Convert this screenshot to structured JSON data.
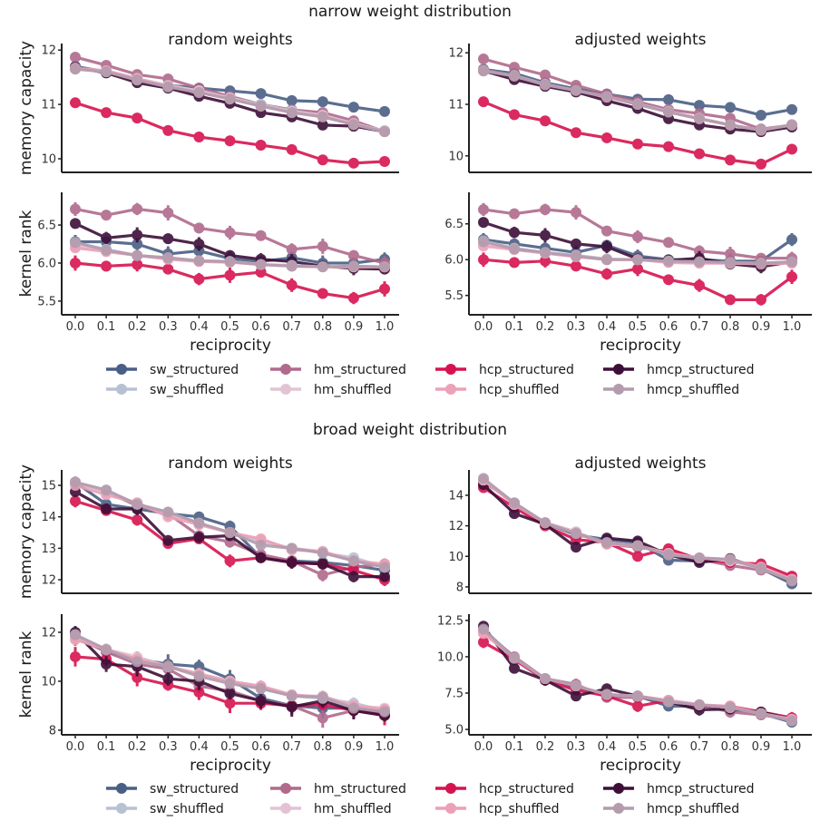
{
  "sections": [
    {
      "title": "narrow weight distribution"
    },
    {
      "title": "broad weight distribution"
    }
  ],
  "legend": [
    {
      "key": "sw_structured",
      "label": "sw_structured",
      "color": "#4a5f85"
    },
    {
      "key": "hm_structured",
      "label": "hm_structured",
      "color": "#b06a8c"
    },
    {
      "key": "hcp_structured",
      "label": "hcp_structured",
      "color": "#d6134f"
    },
    {
      "key": "hmcp_structured",
      "label": "hmcp_structured",
      "color": "#3d0f38"
    },
    {
      "key": "sw_shuffled",
      "label": "sw_shuffled",
      "color": "#b8c1d3"
    },
    {
      "key": "hm_shuffled",
      "label": "hm_shuffled",
      "color": "#e3c3d3"
    },
    {
      "key": "hcp_shuffled",
      "label": "hcp_shuffled",
      "color": "#eba1b7"
    },
    {
      "key": "hmcp_shuffled",
      "label": "hmcp_shuffled",
      "color": "#b29cad"
    }
  ],
  "chart_data": {
    "type": "line",
    "xlabel": "reciprocity",
    "x": [
      0.0,
      0.1,
      0.2,
      0.3,
      0.4,
      0.5,
      0.6,
      0.7,
      0.8,
      0.9,
      1.0
    ],
    "xtick_labels": [
      "0.0",
      "0.1",
      "0.2",
      "0.3",
      "0.4",
      "0.5",
      "0.6",
      "0.7",
      "0.8",
      "0.9",
      "1.0"
    ],
    "panels": [
      {
        "section": "narrow weight distribution",
        "title": "random weights",
        "ylabel": "memory capacity",
        "ylim": [
          9.75,
          12.12
        ],
        "yticks": [
          10,
          11,
          12
        ],
        "ytick_labels": [
          "10",
          "11",
          "12"
        ],
        "error": 0,
        "series": {
          "sw_structured": [
            11.7,
            11.6,
            11.45,
            11.35,
            11.3,
            11.25,
            11.2,
            11.07,
            11.05,
            10.95,
            10.87
          ],
          "hm_structured": [
            11.87,
            11.72,
            11.55,
            11.47,
            11.3,
            11.15,
            11.0,
            10.9,
            10.85,
            10.7,
            10.5
          ],
          "hcp_structured": [
            11.03,
            10.85,
            10.75,
            10.52,
            10.4,
            10.33,
            10.25,
            10.17,
            9.98,
            9.92,
            9.95
          ],
          "hmcp_structured": [
            11.68,
            11.58,
            11.4,
            11.3,
            11.15,
            11.02,
            10.85,
            10.77,
            10.62,
            10.6,
            10.5
          ],
          "sw_shuffled": [
            11.65,
            11.6,
            11.45,
            11.33,
            11.25,
            11.12,
            11.0,
            10.88,
            10.8,
            10.63,
            10.52
          ],
          "hm_shuffled": [
            11.65,
            11.62,
            11.48,
            11.35,
            11.25,
            11.12,
            10.97,
            10.87,
            10.8,
            10.65,
            10.5
          ],
          "hcp_shuffled": [
            11.67,
            11.62,
            11.47,
            11.33,
            11.22,
            11.1,
            10.97,
            10.85,
            10.78,
            10.63,
            10.5
          ],
          "hmcp_shuffled": [
            11.65,
            11.6,
            11.45,
            11.32,
            11.22,
            11.1,
            10.97,
            10.85,
            10.77,
            10.63,
            10.5
          ]
        }
      },
      {
        "section": "narrow weight distribution",
        "title": "random weights",
        "ylabel": "kernel rank",
        "ylim": [
          5.32,
          6.93
        ],
        "yticks": [
          5.5,
          6.0,
          6.5
        ],
        "ytick_labels": [
          "5.5",
          "6.0",
          "6.5"
        ],
        "error": 0.1,
        "series": {
          "sw_structured": [
            6.28,
            6.28,
            6.25,
            6.12,
            6.16,
            6.06,
            6.02,
            6.07,
            6.0,
            6.0,
            6.05
          ],
          "hm_structured": [
            6.71,
            6.63,
            6.71,
            6.66,
            6.46,
            6.4,
            6.36,
            6.18,
            6.22,
            6.1,
            6.0
          ],
          "hcp_structured": [
            6.0,
            5.96,
            5.98,
            5.92,
            5.79,
            5.84,
            5.88,
            5.71,
            5.6,
            5.54,
            5.66
          ],
          "hmcp_structured": [
            6.52,
            6.33,
            6.37,
            6.32,
            6.25,
            6.1,
            6.05,
            6.02,
            5.96,
            5.93,
            5.92
          ],
          "sw_shuffled": [
            6.27,
            6.18,
            6.1,
            6.07,
            6.03,
            6.02,
            5.98,
            5.97,
            5.95,
            5.96,
            5.95
          ],
          "hm_shuffled": [
            6.22,
            6.17,
            6.1,
            6.06,
            6.03,
            6.02,
            5.98,
            5.96,
            5.95,
            5.95,
            5.95
          ],
          "hcp_shuffled": [
            6.2,
            6.15,
            6.1,
            6.05,
            6.02,
            6.01,
            5.98,
            5.96,
            5.95,
            5.95,
            5.95
          ],
          "hmcp_shuffled": [
            6.27,
            6.17,
            6.1,
            6.07,
            6.03,
            6.02,
            5.98,
            5.96,
            5.95,
            5.96,
            5.95
          ]
        }
      },
      {
        "section": "narrow weight distribution",
        "title": "adjusted weights",
        "ylabel": "memory capacity",
        "ylim": [
          9.68,
          12.18
        ],
        "yticks": [
          10,
          11,
          12
        ],
        "ytick_labels": [
          "10",
          "11",
          "12"
        ],
        "error": 0,
        "series": {
          "sw_structured": [
            11.68,
            11.6,
            11.42,
            11.3,
            11.2,
            11.1,
            11.09,
            10.98,
            10.94,
            10.79,
            10.9
          ],
          "hm_structured": [
            11.88,
            11.72,
            11.57,
            11.37,
            11.2,
            11.05,
            10.9,
            10.82,
            10.73,
            10.52,
            10.6
          ],
          "hcp_structured": [
            11.05,
            10.8,
            10.68,
            10.45,
            10.35,
            10.23,
            10.18,
            10.04,
            9.92,
            9.84,
            10.13
          ],
          "hmcp_structured": [
            11.65,
            11.48,
            11.35,
            11.24,
            11.07,
            10.92,
            10.72,
            10.6,
            10.52,
            10.47,
            10.56
          ],
          "sw_shuffled": [
            11.65,
            11.56,
            11.39,
            11.27,
            11.15,
            11.01,
            10.86,
            10.73,
            10.6,
            10.5,
            10.6
          ],
          "hm_shuffled": [
            11.65,
            11.55,
            11.38,
            11.27,
            11.15,
            11.0,
            10.86,
            10.73,
            10.6,
            10.5,
            10.61
          ],
          "hcp_shuffled": [
            11.66,
            11.55,
            11.38,
            11.27,
            11.14,
            11.0,
            10.85,
            10.72,
            10.6,
            10.5,
            10.6
          ],
          "hmcp_shuffled": [
            11.65,
            11.55,
            11.38,
            11.27,
            11.15,
            11.0,
            10.85,
            10.72,
            10.6,
            10.5,
            10.6
          ]
        }
      },
      {
        "section": "narrow weight distribution",
        "title": "adjusted weights",
        "ylabel": "kernel rank",
        "ylim": [
          5.23,
          6.94
        ],
        "yticks": [
          5.5,
          6.0,
          6.5
        ],
        "ytick_labels": [
          "5.5",
          "6.0",
          "6.5"
        ],
        "error": 0.1,
        "series": {
          "sw_structured": [
            6.28,
            6.22,
            6.16,
            6.1,
            6.2,
            6.05,
            6.0,
            6.0,
            5.98,
            5.98,
            6.28
          ],
          "hm_structured": [
            6.7,
            6.64,
            6.7,
            6.66,
            6.4,
            6.32,
            6.24,
            6.12,
            6.08,
            6.02,
            6.02
          ],
          "hcp_structured": [
            6.0,
            5.96,
            5.98,
            5.91,
            5.8,
            5.87,
            5.72,
            5.64,
            5.44,
            5.44,
            5.76
          ],
          "hmcp_structured": [
            6.52,
            6.38,
            6.34,
            6.22,
            6.18,
            6.01,
            5.99,
            6.02,
            5.94,
            5.9,
            5.97
          ],
          "sw_shuffled": [
            6.26,
            6.16,
            6.1,
            6.06,
            6.01,
            6.0,
            5.98,
            5.97,
            5.96,
            5.95,
            5.97
          ],
          "hm_shuffled": [
            6.24,
            6.15,
            6.1,
            6.05,
            6.0,
            6.0,
            5.97,
            5.96,
            5.95,
            5.95,
            5.96
          ],
          "hcp_shuffled": [
            6.19,
            6.14,
            6.09,
            6.04,
            6.0,
            6.0,
            5.96,
            5.95,
            5.95,
            5.94,
            5.95
          ],
          "hmcp_shuffled": [
            6.25,
            6.15,
            6.1,
            6.05,
            6.0,
            6.0,
            5.98,
            5.97,
            5.96,
            5.95,
            5.97
          ]
        }
      },
      {
        "section": "broad weight distribution",
        "title": "random weights",
        "ylabel": "memory capacity",
        "ylim": [
          11.57,
          15.49
        ],
        "yticks": [
          12,
          13,
          14,
          15
        ],
        "ytick_labels": [
          "12",
          "13",
          "14",
          "15"
        ],
        "error": 0.2,
        "series": {
          "sw_structured": [
            15.1,
            14.4,
            14.25,
            14.1,
            14.0,
            13.7,
            12.7,
            12.6,
            12.55,
            12.45,
            12.3
          ],
          "hm_structured": [
            15.1,
            14.8,
            14.35,
            14.1,
            13.4,
            13.2,
            12.8,
            12.6,
            12.15,
            12.4,
            12.5
          ],
          "hcp_structured": [
            14.5,
            14.2,
            13.9,
            13.15,
            13.3,
            12.6,
            12.7,
            12.55,
            12.5,
            12.3,
            12.0
          ],
          "hmcp_structured": [
            14.8,
            14.25,
            14.25,
            13.25,
            13.35,
            13.4,
            12.7,
            12.55,
            12.5,
            12.1,
            12.1
          ],
          "sw_shuffled": [
            15.1,
            14.85,
            14.4,
            14.15,
            13.8,
            13.5,
            13.2,
            13.0,
            12.85,
            12.7,
            12.4
          ],
          "hm_shuffled": [
            15.1,
            14.8,
            14.4,
            14.1,
            13.8,
            13.5,
            13.25,
            13.0,
            12.9,
            12.6,
            12.45
          ],
          "hcp_shuffled": [
            15.0,
            14.7,
            14.45,
            14.0,
            13.75,
            13.5,
            13.3,
            12.95,
            12.9,
            12.6,
            12.5
          ],
          "hmcp_shuffled": [
            15.1,
            14.85,
            14.4,
            14.15,
            13.8,
            13.5,
            13.1,
            13.0,
            12.85,
            12.6,
            12.4
          ]
        }
      },
      {
        "section": "broad weight distribution",
        "title": "random weights",
        "ylabel": "kernel rank",
        "ylim": [
          7.81,
          12.74
        ],
        "yticks": [
          8,
          10,
          12
        ],
        "ytick_labels": [
          "8",
          "10",
          "12"
        ],
        "error": 0.4,
        "series": {
          "sw_structured": [
            11.9,
            11.2,
            10.9,
            10.7,
            10.6,
            10.1,
            9.3,
            9.0,
            8.9,
            8.9,
            8.7
          ],
          "hm_structured": [
            11.8,
            11.2,
            10.7,
            10.5,
            9.8,
            9.6,
            9.2,
            9.0,
            8.5,
            8.8,
            8.7
          ],
          "hcp_structured": [
            11.0,
            10.9,
            10.15,
            9.85,
            9.55,
            9.1,
            9.1,
            9.0,
            9.05,
            8.8,
            8.6
          ],
          "hmcp_structured": [
            12.0,
            10.7,
            10.6,
            10.1,
            10.0,
            9.5,
            9.2,
            8.95,
            9.2,
            8.8,
            8.6
          ],
          "sw_shuffled": [
            11.9,
            11.3,
            10.9,
            10.6,
            10.3,
            10.0,
            9.7,
            9.4,
            9.3,
            9.1,
            8.8
          ],
          "hm_shuffled": [
            11.8,
            11.3,
            11.0,
            10.6,
            10.3,
            10.0,
            9.8,
            9.4,
            9.4,
            9.0,
            8.9
          ],
          "hcp_shuffled": [
            11.7,
            11.3,
            10.9,
            10.6,
            10.3,
            10.0,
            9.8,
            9.45,
            9.35,
            9.0,
            8.85
          ],
          "hmcp_shuffled": [
            11.9,
            11.3,
            10.8,
            10.6,
            10.2,
            9.9,
            9.7,
            9.4,
            9.35,
            8.9,
            8.75
          ]
        }
      },
      {
        "section": "broad weight distribution",
        "title": "adjusted weights",
        "ylabel": "memory capacity",
        "ylim": [
          7.58,
          15.66
        ],
        "yticks": [
          8,
          10,
          12,
          14
        ],
        "ytick_labels": [
          "8",
          "10",
          "12",
          "14"
        ],
        "error": 0.15,
        "series": {
          "sw_structured": [
            14.9,
            13.5,
            12.2,
            11.4,
            11.1,
            10.9,
            9.75,
            9.7,
            9.8,
            9.2,
            8.2
          ],
          "hm_structured": [
            15.0,
            13.4,
            12.2,
            11.6,
            10.8,
            10.6,
            10.3,
            9.8,
            9.4,
            9.1,
            8.6
          ],
          "hcp_structured": [
            14.5,
            13.2,
            12.0,
            11.1,
            10.9,
            10.0,
            10.5,
            9.8,
            9.6,
            9.5,
            8.7
          ],
          "hmcp_structured": [
            14.7,
            12.8,
            12.1,
            10.6,
            11.2,
            11.0,
            10.1,
            9.6,
            9.85,
            9.2,
            8.4
          ],
          "sw_shuffled": [
            15.0,
            13.5,
            12.2,
            11.5,
            10.9,
            10.7,
            10.1,
            9.9,
            9.8,
            9.2,
            8.4
          ],
          "hm_shuffled": [
            15.0,
            13.4,
            12.2,
            11.6,
            10.8,
            10.7,
            10.2,
            9.9,
            9.7,
            9.2,
            8.5
          ],
          "hcp_shuffled": [
            15.0,
            13.4,
            12.2,
            11.5,
            10.8,
            10.7,
            10.2,
            9.9,
            9.8,
            9.3,
            8.5
          ],
          "hmcp_shuffled": [
            15.1,
            13.5,
            12.2,
            11.5,
            10.9,
            10.7,
            10.1,
            9.9,
            9.8,
            9.2,
            8.4
          ]
        }
      },
      {
        "section": "broad weight distribution",
        "title": "adjusted weights",
        "ylabel": "kernel rank",
        "ylim": [
          4.63,
          12.93
        ],
        "yticks": [
          5.0,
          7.5,
          10.0,
          12.5
        ],
        "ytick_labels": [
          "5.0",
          "7.5",
          "10.0",
          "12.5"
        ],
        "error": 0.4,
        "series": {
          "sw_structured": [
            11.9,
            9.9,
            8.5,
            7.9,
            7.4,
            7.3,
            6.6,
            6.6,
            6.5,
            6.1,
            5.5
          ],
          "hm_structured": [
            11.8,
            10.0,
            8.5,
            8.1,
            7.2,
            7.2,
            7.0,
            6.7,
            6.2,
            6.0,
            5.7
          ],
          "hcp_structured": [
            11.0,
            9.8,
            8.4,
            7.7,
            7.3,
            6.6,
            7.0,
            6.6,
            6.6,
            6.2,
            5.8
          ],
          "hmcp_structured": [
            12.1,
            9.2,
            8.4,
            7.3,
            7.8,
            7.3,
            6.9,
            6.35,
            6.4,
            6.2,
            5.7
          ],
          "sw_shuffled": [
            11.8,
            9.9,
            8.5,
            8.0,
            7.4,
            7.3,
            6.9,
            6.7,
            6.5,
            6.1,
            5.6
          ],
          "hm_shuffled": [
            11.7,
            9.9,
            8.5,
            8.0,
            7.4,
            7.3,
            7.0,
            6.7,
            6.5,
            6.1,
            5.7
          ],
          "hcp_shuffled": [
            11.6,
            9.9,
            8.5,
            8.0,
            7.4,
            7.3,
            7.0,
            6.7,
            6.6,
            6.1,
            5.7
          ],
          "hmcp_shuffled": [
            11.9,
            9.9,
            8.5,
            8.0,
            7.4,
            7.3,
            6.9,
            6.7,
            6.5,
            6.1,
            5.6
          ]
        }
      }
    ]
  }
}
